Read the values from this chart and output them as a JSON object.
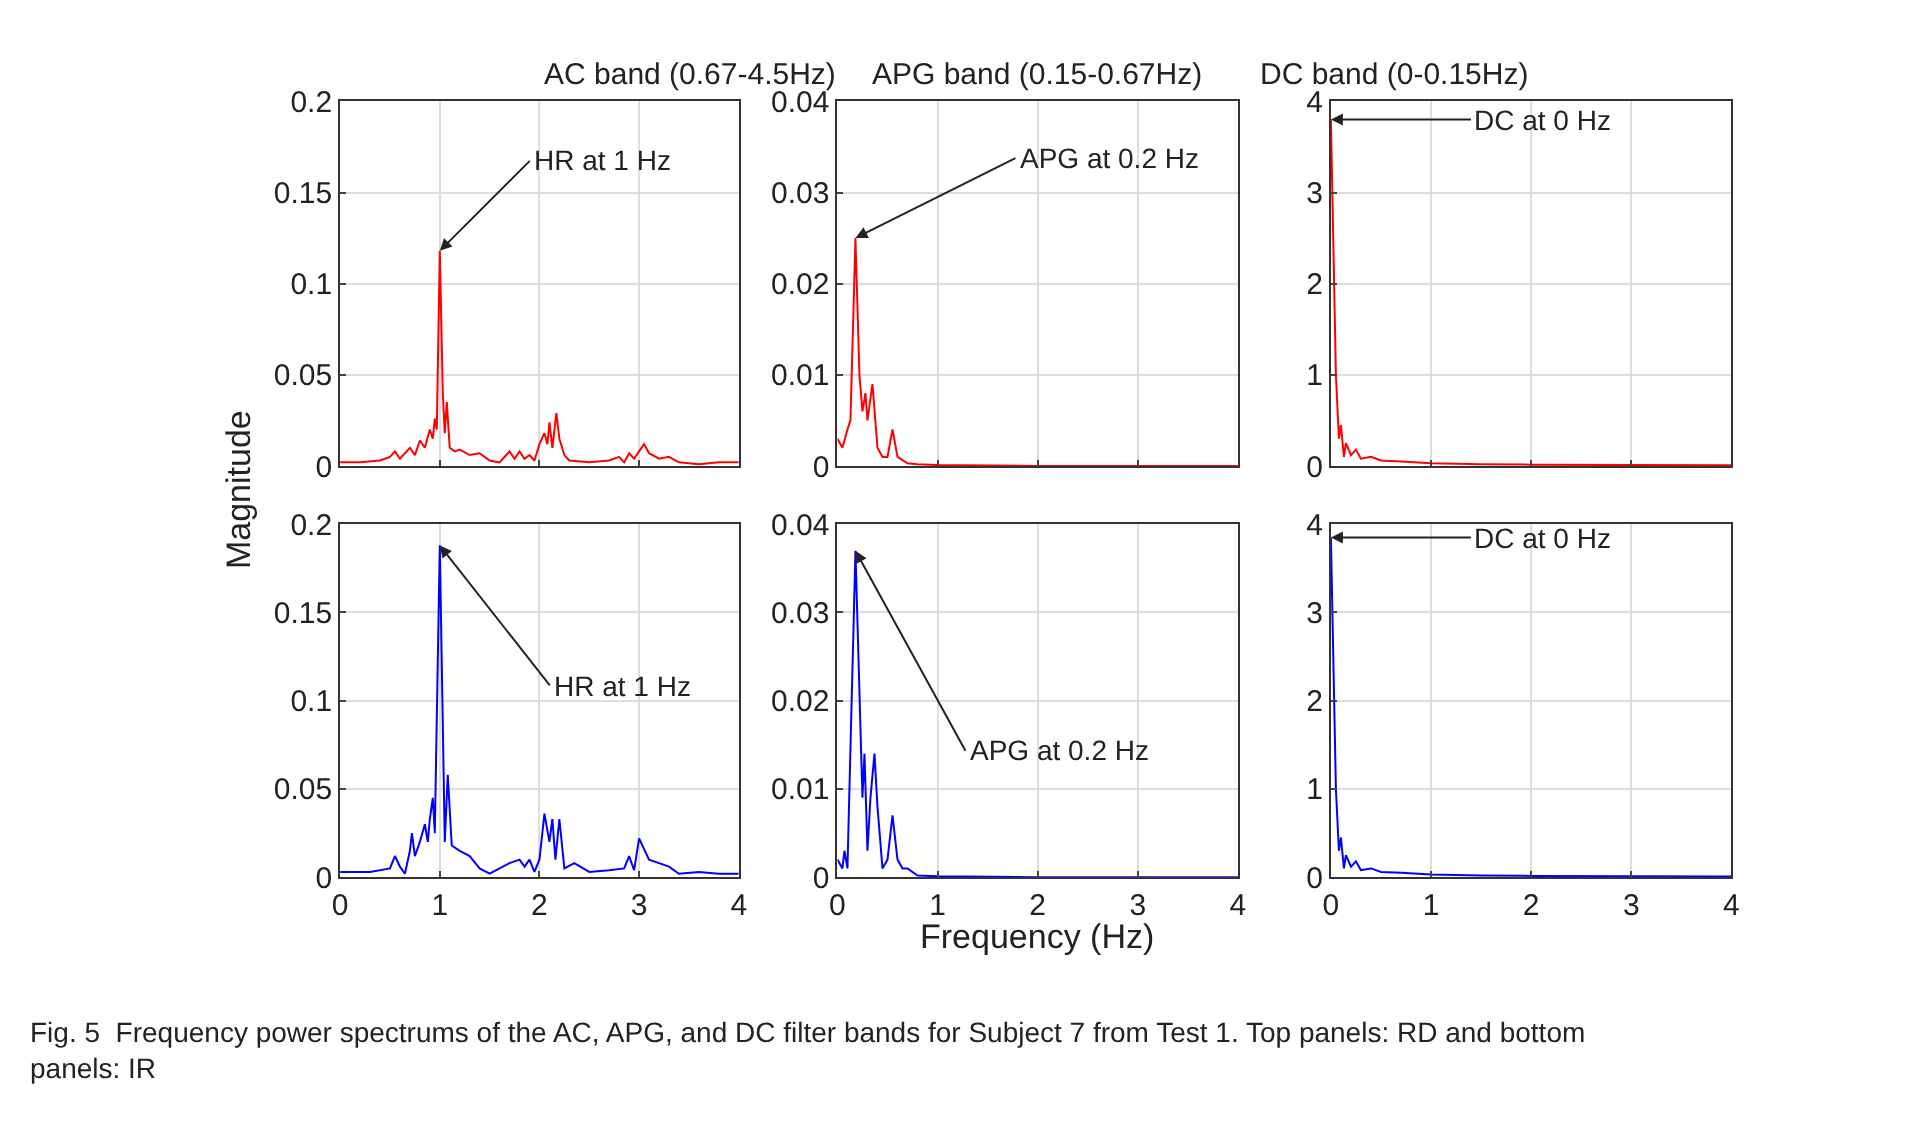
{
  "chart_data": [
    {
      "type": "line",
      "title": "AC band (0.67-4.5Hz)",
      "ylabel": "Magnitude",
      "xlim": [
        0,
        4
      ],
      "xticks": [
        0,
        1,
        2,
        3,
        4
      ],
      "ylim": [
        0,
        0.2
      ],
      "yticks": [
        0,
        0.05,
        0.1,
        0.15,
        0.2
      ],
      "grid": true,
      "tick_labels": "y",
      "marker": "none",
      "line_style": "solid",
      "annotations": [
        {
          "text": "HR at 1 Hz",
          "x": 1.0,
          "y": 0.118
        },
        "Fig. 5  Frequency power spectrums of the AC, APG, and DC filter bands for Subject 7 from Test 1. Top panels: RD and bottom panels: IR"
      ],
      "series": [
        {
          "color": "#ff0000",
          "x": [
            0,
            0.2,
            0.4,
            0.5,
            0.55,
            0.6,
            0.7,
            0.75,
            0.8,
            0.85,
            0.9,
            0.93,
            0.95,
            0.97,
            1.0,
            1.03,
            1.05,
            1.07,
            1.1,
            1.15,
            1.2,
            1.3,
            1.4,
            1.5,
            1.6,
            1.7,
            1.75,
            1.8,
            1.85,
            1.9,
            1.95,
            2.0,
            2.05,
            2.08,
            2.1,
            2.13,
            2.17,
            2.2,
            2.25,
            2.3,
            2.5,
            2.7,
            2.8,
            2.85,
            2.9,
            2.95,
            3.0,
            3.05,
            3.1,
            3.2,
            3.3,
            3.4,
            3.6,
            3.8,
            4.0
          ],
          "values": [
            0.002,
            0.002,
            0.003,
            0.005,
            0.008,
            0.004,
            0.01,
            0.006,
            0.014,
            0.01,
            0.02,
            0.015,
            0.026,
            0.02,
            0.118,
            0.04,
            0.018,
            0.035,
            0.01,
            0.008,
            0.009,
            0.006,
            0.007,
            0.003,
            0.002,
            0.008,
            0.004,
            0.008,
            0.004,
            0.006,
            0.003,
            0.012,
            0.018,
            0.012,
            0.024,
            0.01,
            0.029,
            0.015,
            0.006,
            0.003,
            0.002,
            0.003,
            0.005,
            0.002,
            0.007,
            0.004,
            0.008,
            0.012,
            0.007,
            0.004,
            0.005,
            0.002,
            0.001,
            0.002,
            0.002
          ]
        }
      ]
    },
    {
      "type": "line",
      "title": "APG band (0.15-0.67Hz)",
      "xlim": [
        0,
        4
      ],
      "xticks": [
        0,
        1,
        2,
        3,
        4
      ],
      "ylim": [
        0,
        0.04
      ],
      "yticks": [
        0,
        0.01,
        0.02,
        0.03,
        0.04
      ],
      "grid": true,
      "tick_labels": "y",
      "marker": "none",
      "line_style": "solid",
      "annotations": [
        {
          "text": "APG at 0.2 Hz",
          "x": 0.18,
          "y": 0.025
        }
      ],
      "series": [
        {
          "color": "#ff0000",
          "x": [
            0,
            0.05,
            0.1,
            0.13,
            0.18,
            0.22,
            0.25,
            0.28,
            0.3,
            0.35,
            0.4,
            0.45,
            0.5,
            0.55,
            0.6,
            0.7,
            0.8,
            1.0,
            2.0,
            3.0,
            4.0
          ],
          "values": [
            0.003,
            0.002,
            0.004,
            0.005,
            0.025,
            0.01,
            0.006,
            0.008,
            0.005,
            0.009,
            0.002,
            0.001,
            0.001,
            0.004,
            0.001,
            0.0003,
            0.0002,
            0.0001,
            0,
            0,
            0
          ]
        }
      ]
    },
    {
      "type": "line",
      "title": "DC band (0-0.15Hz)",
      "xlim": [
        0,
        4
      ],
      "xticks": [
        0,
        1,
        2,
        3,
        4
      ],
      "ylim": [
        0,
        4
      ],
      "yticks": [
        0,
        1,
        2,
        3,
        4
      ],
      "grid": true,
      "tick_labels": "y",
      "marker": "none",
      "line_style": "solid",
      "annotations": [
        {
          "text": "DC at 0 Hz",
          "x": 0,
          "y": 3.8
        }
      ],
      "series": [
        {
          "color": "#ff0000",
          "x": [
            0,
            0.05,
            0.08,
            0.1,
            0.13,
            0.15,
            0.2,
            0.25,
            0.3,
            0.4,
            0.5,
            0.7,
            1.0,
            1.5,
            2.0,
            3.0,
            4.0
          ],
          "values": [
            3.8,
            1.0,
            0.3,
            0.45,
            0.1,
            0.25,
            0.12,
            0.18,
            0.08,
            0.1,
            0.06,
            0.05,
            0.03,
            0.02,
            0.015,
            0.01,
            0.008
          ]
        }
      ]
    },
    {
      "type": "line",
      "xlim": [
        0,
        4
      ],
      "xticks": [
        0,
        1,
        2,
        3,
        4
      ],
      "ylim": [
        0,
        0.2
      ],
      "yticks": [
        0,
        0.05,
        0.1,
        0.15,
        0.2
      ],
      "grid": true,
      "marker": "none",
      "line_style": "solid",
      "annotations": [
        {
          "text": "HR at 1 Hz",
          "x": 1.0,
          "y": 0.188
        }
      ],
      "series": [
        {
          "color": "#0000ff",
          "x": [
            0,
            0.3,
            0.5,
            0.55,
            0.6,
            0.65,
            0.7,
            0.72,
            0.75,
            0.8,
            0.85,
            0.88,
            0.9,
            0.93,
            0.95,
            1.0,
            1.05,
            1.08,
            1.12,
            1.2,
            1.3,
            1.4,
            1.5,
            1.7,
            1.8,
            1.85,
            1.9,
            1.95,
            2.0,
            2.05,
            2.1,
            2.13,
            2.16,
            2.2,
            2.25,
            2.35,
            2.5,
            2.7,
            2.85,
            2.9,
            2.95,
            3.0,
            3.1,
            3.2,
            3.3,
            3.4,
            3.6,
            3.8,
            4.0
          ],
          "values": [
            0.003,
            0.003,
            0.005,
            0.012,
            0.006,
            0.002,
            0.015,
            0.025,
            0.012,
            0.02,
            0.03,
            0.02,
            0.033,
            0.045,
            0.025,
            0.188,
            0.02,
            0.058,
            0.018,
            0.015,
            0.012,
            0.005,
            0.002,
            0.008,
            0.01,
            0.006,
            0.01,
            0.003,
            0.01,
            0.036,
            0.02,
            0.033,
            0.01,
            0.033,
            0.005,
            0.008,
            0.003,
            0.004,
            0.005,
            0.012,
            0.004,
            0.022,
            0.01,
            0.008,
            0.006,
            0.002,
            0.003,
            0.002,
            0.002
          ]
        }
      ]
    },
    {
      "type": "line",
      "xlabel": "Frequency (Hz)",
      "xlim": [
        0,
        4
      ],
      "xticks": [
        0,
        1,
        2,
        3,
        4
      ],
      "ylim": [
        0,
        0.04
      ],
      "yticks": [
        0,
        0.01,
        0.02,
        0.03,
        0.04
      ],
      "grid": true,
      "marker": "none",
      "line_style": "solid",
      "annotations": [
        {
          "text": "APG at 0.2 Hz",
          "x": 0.18,
          "y": 0.037
        }
      ],
      "series": [
        {
          "color": "#0000ff",
          "x": [
            0,
            0.05,
            0.07,
            0.1,
            0.18,
            0.25,
            0.27,
            0.3,
            0.33,
            0.37,
            0.4,
            0.45,
            0.5,
            0.55,
            0.6,
            0.65,
            0.7,
            0.8,
            1.0,
            2.0,
            4.0
          ],
          "values": [
            0.002,
            0.001,
            0.003,
            0.001,
            0.037,
            0.009,
            0.014,
            0.003,
            0.009,
            0.014,
            0.008,
            0.001,
            0.002,
            0.007,
            0.002,
            0.001,
            0.001,
            0.0002,
            0.0001,
            0,
            0
          ]
        }
      ]
    },
    {
      "type": "line",
      "xlim": [
        0,
        4
      ],
      "xticks": [
        0,
        1,
        2,
        3,
        4
      ],
      "ylim": [
        0,
        4
      ],
      "yticks": [
        0,
        1,
        2,
        3,
        4
      ],
      "grid": true,
      "marker": "none",
      "line_style": "solid",
      "annotations": [
        {
          "text": "DC at 0 Hz",
          "x": 0,
          "y": 3.85
        }
      ],
      "series": [
        {
          "color": "#0000ff",
          "x": [
            0,
            0.05,
            0.08,
            0.1,
            0.13,
            0.15,
            0.2,
            0.25,
            0.3,
            0.4,
            0.5,
            0.7,
            1.0,
            1.5,
            2.0,
            3.0,
            4.0
          ],
          "values": [
            3.85,
            1.0,
            0.3,
            0.45,
            0.1,
            0.25,
            0.12,
            0.18,
            0.08,
            0.1,
            0.06,
            0.05,
            0.03,
            0.02,
            0.015,
            0.01,
            0.008
          ]
        }
      ]
    }
  ]
}
